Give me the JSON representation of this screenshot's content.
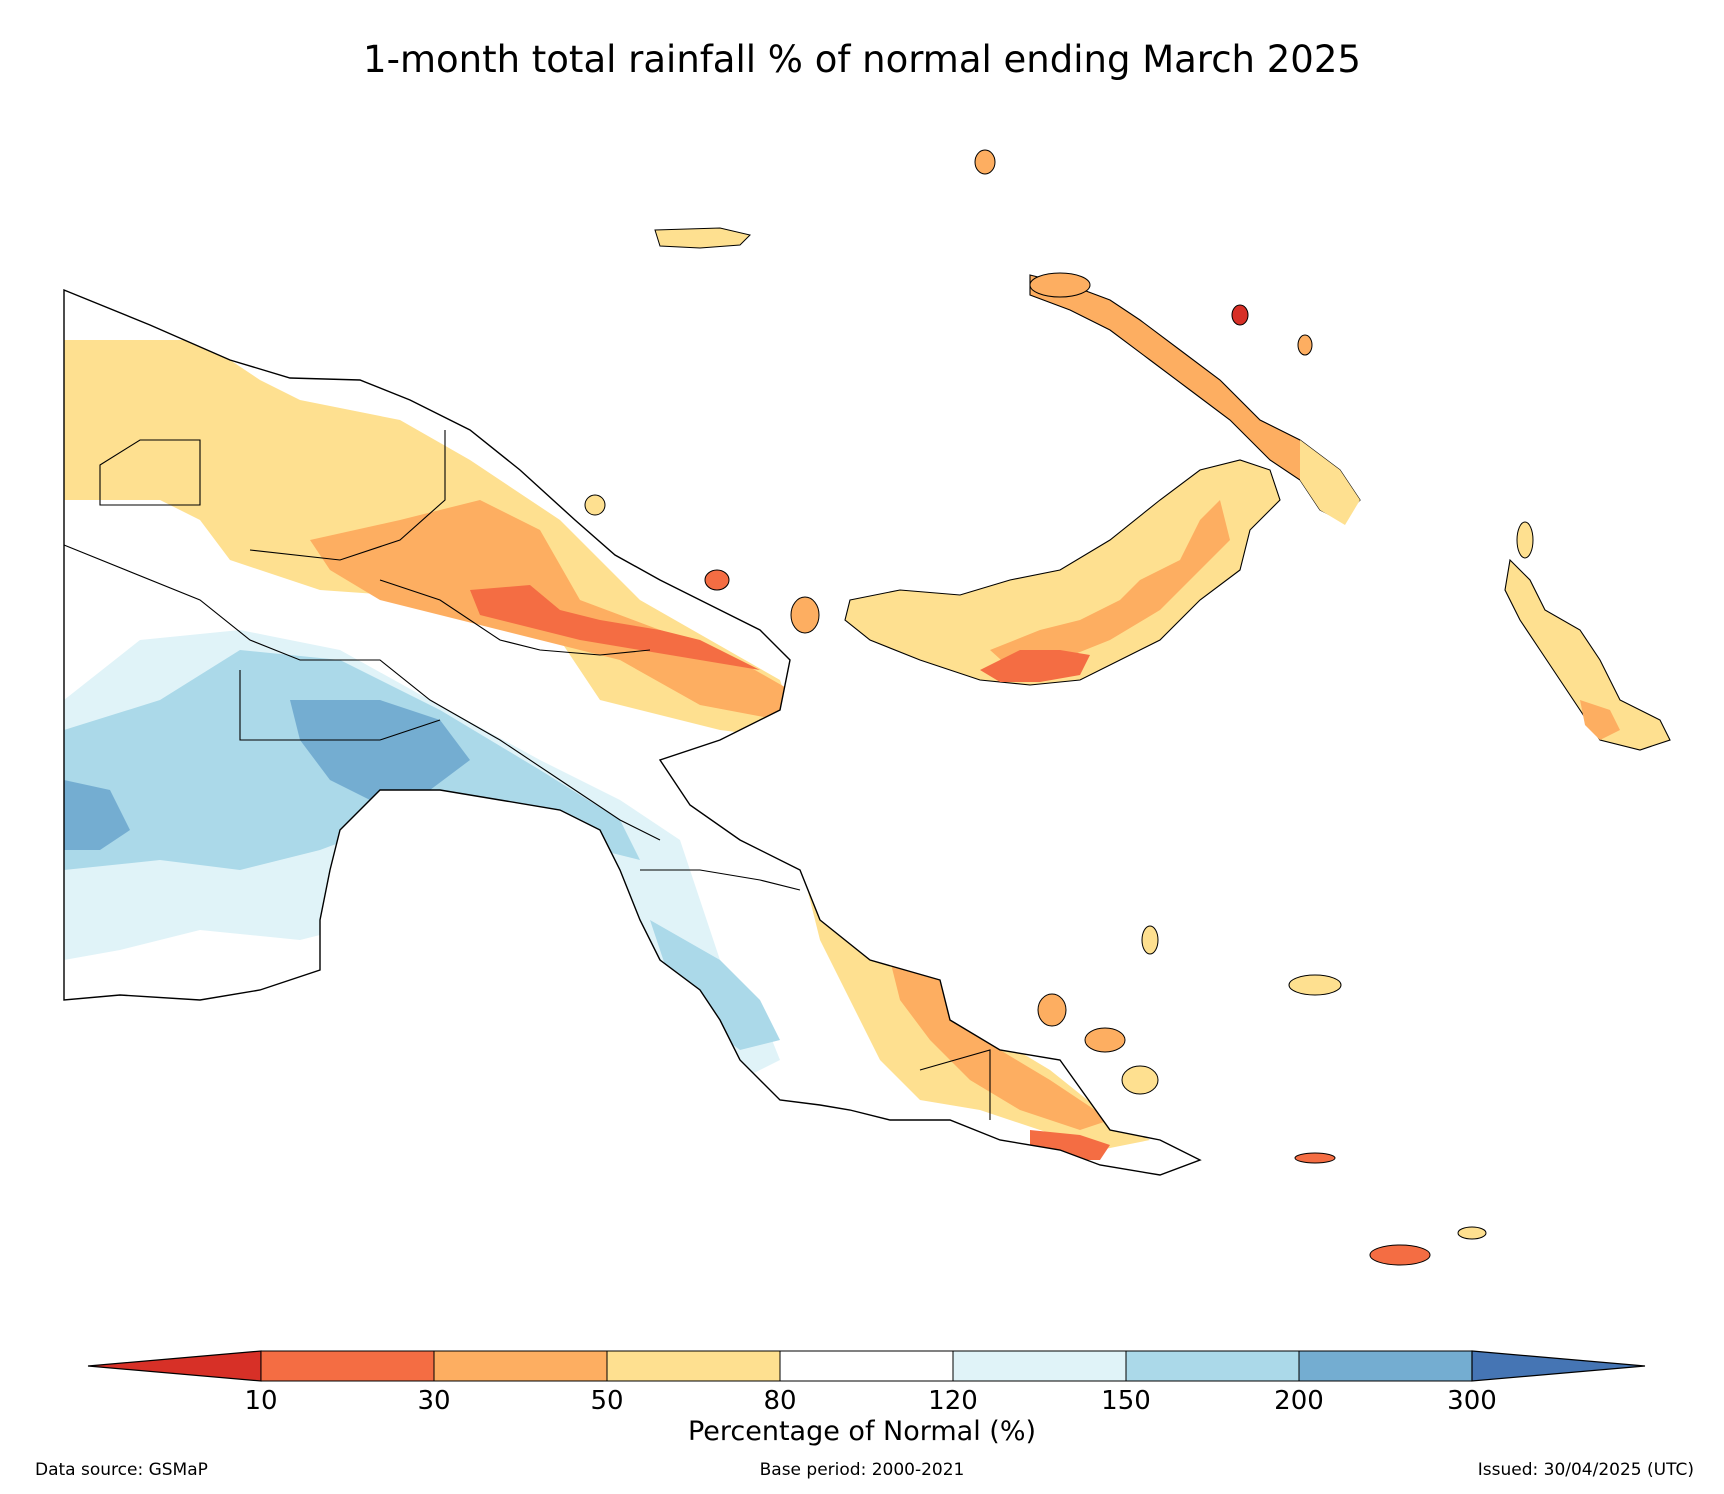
{
  "title": "1-month total rainfall % of normal ending March 2025",
  "legend": {
    "label": "Percentage of Normal (%)",
    "ticks": [
      "10",
      "30",
      "50",
      "80",
      "120",
      "150",
      "200",
      "300"
    ],
    "colors": {
      "lt10": "#d73027",
      "10_30": "#f46d43",
      "30_50": "#fdae61",
      "50_80": "#fee090",
      "80_120": "#ffffff",
      "120_150": "#e0f3f8",
      "150_200": "#abd9e9",
      "200_300": "#74add1",
      "gt300": "#4575b4"
    }
  },
  "footer": {
    "source": "Data source: GSMaP",
    "base_period": "Base period: 2000-2021",
    "issued": "Issued: 30/04/2025 (UTC)"
  }
}
